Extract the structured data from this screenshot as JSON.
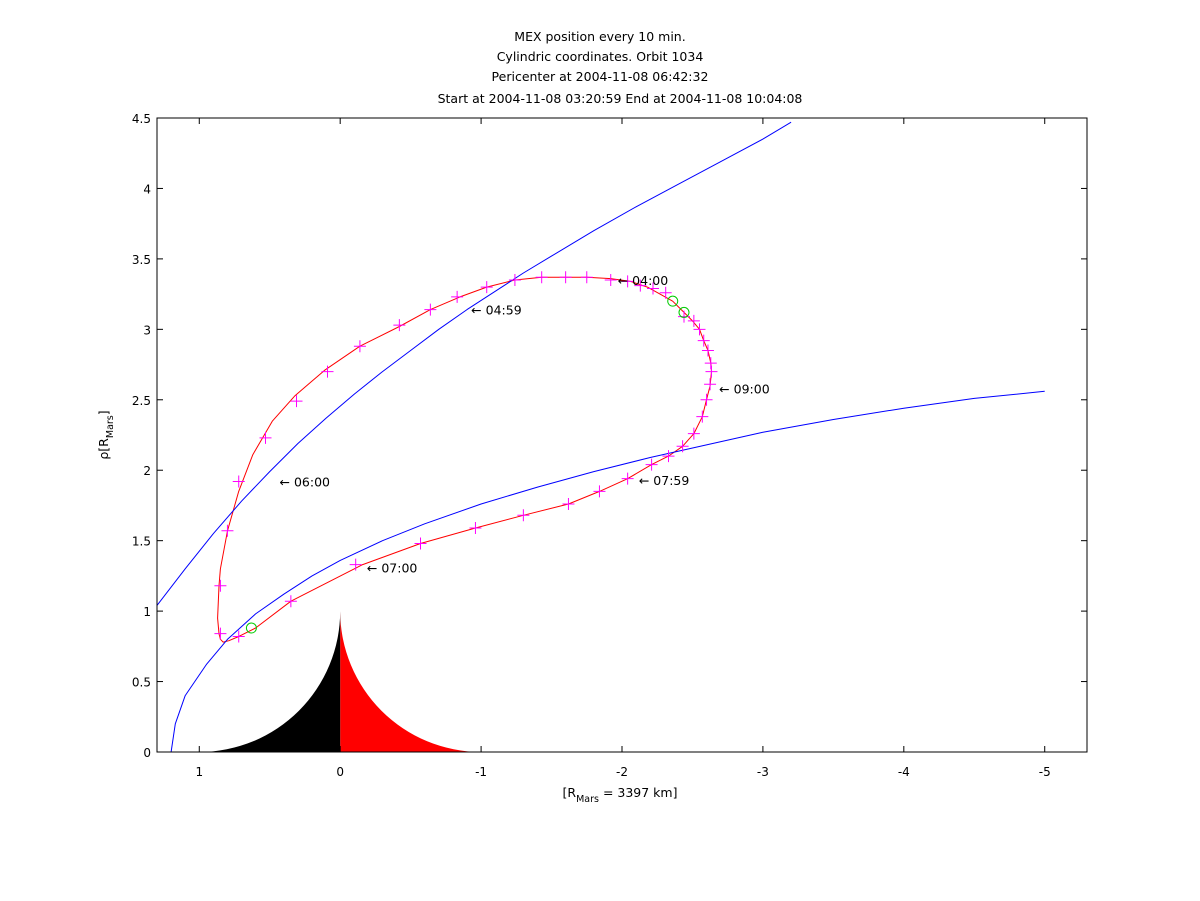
{
  "chart_data": {
    "type": "line",
    "title_lines": [
      "MEX position every 10 min.",
      "Cylindric coordinates. Orbit 1034",
      "Pericenter at 2004-11-08 06:42:32",
      "Start at 2004-11-08 03:20:59 End at 2004-11-08 10:04:08"
    ],
    "xlabel": {
      "prefix": "[R",
      "sub": "Mars",
      "suffix": " = 3397 km]"
    },
    "ylabel": {
      "prefix": "ρ[R",
      "sub": "Mars",
      "suffix": "]"
    },
    "xlim": [
      1.3,
      -5.3
    ],
    "ylim": [
      0,
      4.5
    ],
    "xticks": [
      1,
      0,
      -1,
      -2,
      -3,
      -4,
      -5
    ],
    "yticks": [
      0,
      0.5,
      1,
      1.5,
      2,
      2.5,
      3,
      3.5,
      4,
      4.5
    ],
    "xtick_labels": [
      "1",
      "0",
      "-1",
      "-2",
      "-3",
      "-4",
      "-5"
    ],
    "ytick_labels": [
      "0",
      "0.5",
      "1",
      "1.5",
      "2",
      "2.5",
      "3",
      "3.5",
      "4",
      "4.5"
    ],
    "grid": false,
    "colors": {
      "orbit": "#ff0000",
      "markers": "#ff00ff",
      "boundaries": "#0000ff",
      "crossings": "#00cc00",
      "mars_day": "#ff0000",
      "mars_night": "#000000"
    },
    "mars": {
      "radius": 1.0,
      "halo_radius": 1.05
    },
    "series": [
      {
        "kind": "orbit",
        "color": "#ff0000",
        "x": [
          -1.75,
          -1.92,
          -2.06,
          -2.18,
          -2.27,
          -2.36,
          -2.44,
          -2.5,
          -2.55,
          -2.58,
          -2.61,
          -2.63,
          -2.635,
          -2.625,
          -2.6,
          -2.57,
          -2.51,
          -2.43,
          -2.33,
          -2.21,
          -2.04,
          -1.84,
          -1.62,
          -1.3,
          -0.96,
          -0.57,
          -0.16,
          0.35,
          0.6,
          0.72,
          0.79,
          0.83,
          0.85,
          0.86,
          0.87,
          0.86,
          0.85,
          0.8,
          0.72,
          0.62,
          0.48,
          0.32,
          0.11,
          -0.14,
          -0.42,
          -0.64,
          -0.85,
          -1.04,
          -1.24,
          -1.43,
          -1.6,
          -1.75
        ],
        "y": [
          3.37,
          3.36,
          3.34,
          3.3,
          3.25,
          3.2,
          3.12,
          3.06,
          3.0,
          2.92,
          2.85,
          2.76,
          2.7,
          2.6,
          2.5,
          2.38,
          2.26,
          2.17,
          2.1,
          2.04,
          1.94,
          1.85,
          1.76,
          1.68,
          1.59,
          1.48,
          1.33,
          1.07,
          0.88,
          0.82,
          0.79,
          0.78,
          0.8,
          0.84,
          0.95,
          1.18,
          1.3,
          1.57,
          1.85,
          2.11,
          2.35,
          2.53,
          2.71,
          2.88,
          3.02,
          3.14,
          3.23,
          3.3,
          3.35,
          3.37,
          3.37,
          3.37
        ]
      },
      {
        "kind": "boundary-outer",
        "color": "#0000ff",
        "x": [
          1.3,
          1.1,
          0.9,
          0.7,
          0.5,
          0.3,
          0.1,
          -0.1,
          -0.3,
          -0.5,
          -0.7,
          -0.9,
          -1.1,
          -1.3,
          -1.5,
          -1.8,
          -2.1,
          -2.4,
          -2.7,
          -3.0,
          -3.2
        ],
        "y": [
          1.04,
          1.3,
          1.55,
          1.78,
          1.99,
          2.19,
          2.37,
          2.54,
          2.7,
          2.85,
          3.0,
          3.14,
          3.27,
          3.4,
          3.52,
          3.7,
          3.87,
          4.03,
          4.19,
          4.35,
          4.47
        ]
      },
      {
        "kind": "boundary-inner",
        "color": "#0000ff",
        "x": [
          1.2,
          1.17,
          1.1,
          0.95,
          0.8,
          0.6,
          0.4,
          0.2,
          0.0,
          -0.3,
          -0.6,
          -1.0,
          -1.4,
          -1.8,
          -2.2,
          -2.6,
          -3.0,
          -3.5,
          -4.0,
          -4.5,
          -5.0
        ],
        "y": [
          0.0,
          0.2,
          0.4,
          0.62,
          0.8,
          0.98,
          1.12,
          1.25,
          1.36,
          1.5,
          1.62,
          1.76,
          1.88,
          1.99,
          2.09,
          2.18,
          2.27,
          2.36,
          2.44,
          2.51,
          2.56
        ]
      }
    ],
    "markers": {
      "style": "+",
      "color": "#ff00ff",
      "x": [
        -1.92,
        -2.04,
        -2.13,
        -2.22,
        -2.31,
        -2.44,
        -2.51,
        -2.55,
        -2.58,
        -2.61,
        -2.63,
        -2.635,
        -2.625,
        -2.6,
        -2.57,
        -2.51,
        -2.43,
        -2.33,
        -2.21,
        -2.04,
        -1.84,
        -1.62,
        -1.3,
        -0.96,
        -0.57,
        -0.11,
        0.35,
        0.72,
        0.85,
        0.85,
        0.8,
        0.72,
        0.53,
        0.31,
        0.09,
        -0.14,
        -0.42,
        -0.64,
        -0.83,
        -1.04,
        -1.24,
        -1.43,
        -1.6,
        -1.75
      ],
      "y": [
        3.35,
        3.34,
        3.31,
        3.29,
        3.26,
        3.09,
        3.06,
        3.0,
        2.92,
        2.85,
        2.76,
        2.7,
        2.61,
        2.5,
        2.38,
        2.26,
        2.17,
        2.1,
        2.04,
        1.94,
        1.85,
        1.76,
        1.68,
        1.59,
        1.48,
        1.33,
        1.07,
        0.82,
        0.84,
        1.18,
        1.57,
        1.92,
        2.23,
        2.49,
        2.7,
        2.88,
        3.03,
        3.14,
        3.23,
        3.3,
        3.35,
        3.37,
        3.37,
        3.37
      ]
    },
    "crossings": {
      "style": "o",
      "color": "#00cc00",
      "x": [
        -2.36,
        -2.44,
        0.63
      ],
      "y": [
        3.2,
        3.12,
        0.88
      ]
    },
    "annotations": [
      {
        "text": "← 04:00",
        "x": -1.92,
        "y": 3.35
      },
      {
        "text": "← 04:59",
        "x": -0.88,
        "y": 3.14
      },
      {
        "text": "← 06:00",
        "x": 0.48,
        "y": 1.92
      },
      {
        "text": "← 07:00",
        "x": -0.14,
        "y": 1.31
      },
      {
        "text": "← 07:59",
        "x": -2.07,
        "y": 1.93
      },
      {
        "text": "← 09:00",
        "x": -2.64,
        "y": 2.58
      }
    ]
  }
}
